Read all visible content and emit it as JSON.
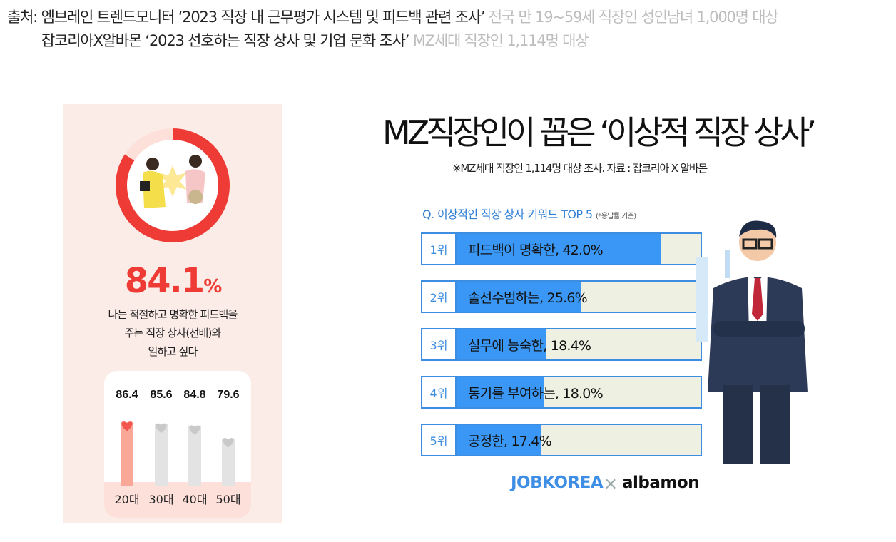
{
  "sources": {
    "line1": {
      "org": "출처: 엠브레인 트렌드모니터",
      "title": "‘2023 직장 내 근무평가 시스템 및 피드백 관련 조사’",
      "note": "전국 만 19~59세 직장인 성인남녀 1,000명 대상"
    },
    "line2": {
      "org": "잡코리아X알바몬",
      "title": "‘2023 선호하는 직장 상사 및 기업 문화 조사’",
      "note": "MZ세대 직장인 1,114명 대상"
    }
  },
  "left": {
    "percent": "84.1",
    "percent_sign": "%",
    "desc": [
      "나는 적절하고 명확한 피드백을",
      "주는 직장 상사(선배)와",
      "일하고 싶다"
    ],
    "colors": {
      "accent": "#ef3b36",
      "bg": "#fbece7",
      "highlight_bar": "#f9a898",
      "bar": "#e3e3e3"
    }
  },
  "right": {
    "title": "MZ직장인이 꼽은 ‘이상적 직장 상사’",
    "subtitle": "※MZ세대 직장인 1,114명 대상 조사. 자료 : 잡코리아 X 알바몬",
    "question": "Q. 이상적인 직장 상사 키워드 TOP 5",
    "question_note": "(*응답률 기준)",
    "logo_left": "JOBKOREA",
    "logo_x": "×",
    "logo_right": "albamon",
    "colors": {
      "bar_fill": "#3a97f5",
      "bar_bg": "#eef0e2",
      "border": "#3d8ee0"
    }
  },
  "chart_data": [
    {
      "type": "pie",
      "values": [
        84.1,
        15.9
      ],
      "colors": [
        "#ef3b36",
        "#ffffff"
      ]
    },
    {
      "type": "bar",
      "categories": [
        "20대",
        "30대",
        "40대",
        "50대"
      ],
      "values": [
        86.4,
        85.6,
        84.8,
        79.6
      ],
      "value_labels": [
        "86.4",
        "85.6",
        "84.8",
        "79.6"
      ],
      "highlight_index": 0
    },
    {
      "type": "bar",
      "orientation": "horizontal",
      "ranks": [
        "1위",
        "2위",
        "3위",
        "4위",
        "5위"
      ],
      "categories": [
        "피드백이 명확한",
        "솔선수범하는",
        "실무에 능숙한",
        "동기를 부여하는",
        "공정한"
      ],
      "values": [
        42.0,
        25.6,
        18.4,
        18.0,
        17.4
      ],
      "labels": [
        "피드백이 명확한, 42.0%",
        "솔선수범하는, 25.6%",
        "실무에 능숙한, 18.4%",
        "동기를 부여하는, 18.0%",
        "공정한, 17.4%"
      ],
      "xlim": [
        0,
        50
      ]
    }
  ]
}
